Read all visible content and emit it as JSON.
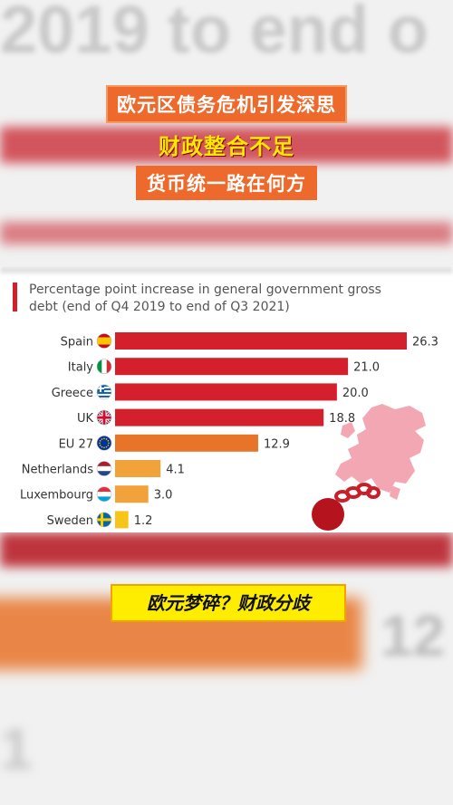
{
  "background_text": {
    "top": "2019 to end o",
    "big_number": "12",
    "small_number": "1"
  },
  "headlines": {
    "line1": "欧元区债务危机引发深思",
    "line2": "财政整合不足",
    "line3": "货币统一路在何方"
  },
  "caption": "欧元梦碎？财政分歧",
  "colors": {
    "headline_box": "#ee6a2c",
    "headline_yellow": "#ffe700",
    "bar_red": "#d4202c",
    "bar_orange": "#e8742a",
    "bar_light_orange": "#f2a23b",
    "bar_yellow": "#f7c51a",
    "map_pink": "#f3a7b2",
    "caption_bg": "#ffed00"
  },
  "chart_data": {
    "type": "bar",
    "orientation": "horizontal",
    "title": "",
    "subtitle": "Percentage point increase in general government gross debt (end of Q4 2019 to end of Q3 2021)",
    "categories": [
      "Spain",
      "Italy",
      "Greece",
      "UK",
      "EU 27",
      "Netherlands",
      "Luxembourg",
      "Sweden"
    ],
    "values": [
      26.3,
      21.0,
      20.0,
      18.8,
      12.9,
      4.1,
      3.0,
      1.2
    ],
    "value_labels": [
      "26.3",
      "21.0",
      "20.0",
      "18.8",
      "12.9",
      "4.1",
      "3.0",
      "1.2"
    ],
    "flags": [
      "spain-flag-icon",
      "italy-flag-icon",
      "greece-flag-icon",
      "uk-flag-icon",
      "eu-flag-icon",
      "netherlands-flag-icon",
      "luxembourg-flag-icon",
      "sweden-flag-icon"
    ],
    "bar_colors": [
      "#d4202c",
      "#d4202c",
      "#d4202c",
      "#d4202c",
      "#e8742a",
      "#f2a23b",
      "#f2a23b",
      "#f7c51a"
    ],
    "xlim": [
      0,
      26.3
    ],
    "grid": false,
    "legend": "none"
  }
}
